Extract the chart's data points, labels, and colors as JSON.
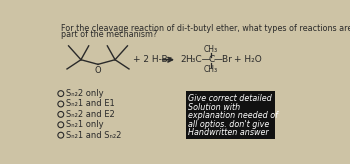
{
  "background_color": "#cdc3a5",
  "title_line1": "For the cleavage reaction of di-t-butyl ether, what types of reactions are occurring as",
  "title_line2": "part of the mechanism?",
  "reaction_left": "+ 2 H-Br",
  "reaction_right_2": "2",
  "reaction_H3C": "H₃C—",
  "reaction_C": "C",
  "reaction_Br": "—Br",
  "reaction_H2O": "+ H₂O",
  "reaction_CH3_top": "CH₃",
  "reaction_CH3_bottom": "CH₃",
  "options": [
    "Sₙ₂2 only",
    "Sₙ₂1 and E1",
    "Sₙ₂2 and E2",
    "Sₙ₂1 only",
    "Sₙ₂1 and Sₙ₂2"
  ],
  "box_text_lines": [
    "Give correct detailed",
    "Solution with",
    "explanation needed of",
    "all optios. don't give",
    "Handwritten answer"
  ],
  "box_bg": "#111111",
  "box_text_color": "#ffffff",
  "text_color": "#2a2a2a",
  "option_font_size": 6.0,
  "title_font_size": 5.8,
  "reaction_font_size": 6.5,
  "small_font_size": 5.5
}
